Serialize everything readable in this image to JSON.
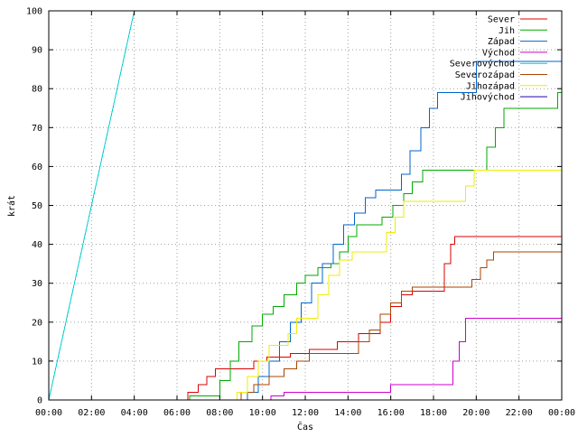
{
  "chart_data": {
    "type": "line",
    "title": "",
    "xlabel": "Čas",
    "ylabel": "krát",
    "x_ticks": [
      "00:00",
      "02:00",
      "04:00",
      "06:00",
      "08:00",
      "10:00",
      "12:00",
      "14:00",
      "16:00",
      "18:00",
      "20:00",
      "22:00",
      "00:00"
    ],
    "y_ticks": [
      "0",
      "10",
      "20",
      "30",
      "40",
      "50",
      "60",
      "70",
      "80",
      "90",
      "100"
    ],
    "xlim": [
      0,
      24
    ],
    "ylim": [
      0,
      100
    ],
    "grid": true,
    "legend_position": "top-right",
    "series": [
      {
        "name": "Sever",
        "color": "#dd0000",
        "shape": "steps",
        "points": [
          [
            0,
            0
          ],
          [
            6.5,
            0
          ],
          [
            6.5,
            2
          ],
          [
            7.0,
            2
          ],
          [
            7.0,
            4
          ],
          [
            7.4,
            4
          ],
          [
            7.4,
            6
          ],
          [
            7.8,
            6
          ],
          [
            7.8,
            8
          ],
          [
            9.6,
            8
          ],
          [
            9.6,
            10
          ],
          [
            10.2,
            10
          ],
          [
            10.2,
            11
          ],
          [
            11.3,
            11
          ],
          [
            11.3,
            12
          ],
          [
            12.2,
            12
          ],
          [
            12.2,
            13
          ],
          [
            13.5,
            13
          ],
          [
            13.5,
            15
          ],
          [
            14.5,
            15
          ],
          [
            14.5,
            17
          ],
          [
            15.5,
            17
          ],
          [
            15.5,
            20
          ],
          [
            16.0,
            20
          ],
          [
            16.0,
            24
          ],
          [
            16.5,
            24
          ],
          [
            16.5,
            27
          ],
          [
            17.0,
            27
          ],
          [
            17.0,
            28
          ],
          [
            18.5,
            28
          ],
          [
            18.5,
            35
          ],
          [
            18.8,
            35
          ],
          [
            18.8,
            40
          ],
          [
            19.0,
            40
          ],
          [
            19.0,
            42
          ],
          [
            24,
            42
          ]
        ]
      },
      {
        "name": "Jih",
        "color": "#00aa00",
        "shape": "steps",
        "points": [
          [
            0,
            0
          ],
          [
            6.6,
            0
          ],
          [
            6.6,
            1
          ],
          [
            8.0,
            1
          ],
          [
            8.0,
            5
          ],
          [
            8.5,
            5
          ],
          [
            8.5,
            10
          ],
          [
            8.9,
            10
          ],
          [
            8.9,
            15
          ],
          [
            9.5,
            15
          ],
          [
            9.5,
            19
          ],
          [
            10.0,
            19
          ],
          [
            10.0,
            22
          ],
          [
            10.5,
            22
          ],
          [
            10.5,
            24
          ],
          [
            11.0,
            24
          ],
          [
            11.0,
            27
          ],
          [
            11.6,
            27
          ],
          [
            11.6,
            30
          ],
          [
            12.0,
            30
          ],
          [
            12.0,
            32
          ],
          [
            12.6,
            32
          ],
          [
            12.6,
            34
          ],
          [
            13.2,
            34
          ],
          [
            13.2,
            35
          ],
          [
            13.6,
            35
          ],
          [
            13.6,
            38
          ],
          [
            14.0,
            38
          ],
          [
            14.0,
            42
          ],
          [
            14.4,
            42
          ],
          [
            14.4,
            45
          ],
          [
            15.6,
            45
          ],
          [
            15.6,
            47
          ],
          [
            16.1,
            47
          ],
          [
            16.1,
            50
          ],
          [
            16.6,
            50
          ],
          [
            16.6,
            53
          ],
          [
            17.0,
            53
          ],
          [
            17.0,
            56
          ],
          [
            17.5,
            56
          ],
          [
            17.5,
            59
          ],
          [
            20.5,
            59
          ],
          [
            20.5,
            65
          ],
          [
            20.9,
            65
          ],
          [
            20.9,
            70
          ],
          [
            21.3,
            70
          ],
          [
            21.3,
            75
          ],
          [
            23.8,
            75
          ],
          [
            23.8,
            79
          ],
          [
            24,
            79
          ]
        ]
      },
      {
        "name": "Západ",
        "color": "#0066cc",
        "shape": "steps",
        "points": [
          [
            0,
            0
          ],
          [
            9.3,
            0
          ],
          [
            9.3,
            2
          ],
          [
            9.8,
            2
          ],
          [
            9.8,
            6
          ],
          [
            10.3,
            6
          ],
          [
            10.3,
            10
          ],
          [
            10.8,
            10
          ],
          [
            10.8,
            15
          ],
          [
            11.3,
            15
          ],
          [
            11.3,
            20
          ],
          [
            11.8,
            20
          ],
          [
            11.8,
            25
          ],
          [
            12.3,
            25
          ],
          [
            12.3,
            30
          ],
          [
            12.8,
            30
          ],
          [
            12.8,
            35
          ],
          [
            13.3,
            35
          ],
          [
            13.3,
            40
          ],
          [
            13.8,
            40
          ],
          [
            13.8,
            45
          ],
          [
            14.3,
            45
          ],
          [
            14.3,
            48
          ],
          [
            14.8,
            48
          ],
          [
            14.8,
            52
          ],
          [
            15.3,
            52
          ],
          [
            15.3,
            54
          ],
          [
            16.5,
            54
          ],
          [
            16.5,
            58
          ],
          [
            16.9,
            58
          ],
          [
            16.9,
            64
          ],
          [
            17.4,
            64
          ],
          [
            17.4,
            70
          ],
          [
            17.8,
            70
          ],
          [
            17.8,
            75
          ],
          [
            18.2,
            75
          ],
          [
            18.2,
            79
          ],
          [
            20.0,
            79
          ],
          [
            20.0,
            87
          ],
          [
            24,
            87
          ]
        ]
      },
      {
        "name": "Východ",
        "color": "#cc00cc",
        "shape": "steps",
        "points": [
          [
            0,
            0
          ],
          [
            10.4,
            0
          ],
          [
            10.4,
            1
          ],
          [
            11.0,
            1
          ],
          [
            11.0,
            2
          ],
          [
            16.0,
            2
          ],
          [
            16.0,
            4
          ],
          [
            18.9,
            4
          ],
          [
            18.9,
            10
          ],
          [
            19.2,
            10
          ],
          [
            19.2,
            15
          ],
          [
            19.5,
            15
          ],
          [
            19.5,
            21
          ],
          [
            24,
            21
          ]
        ]
      },
      {
        "name": "Severovýchod",
        "color": "#00cccc",
        "shape": "line",
        "points": [
          [
            0,
            0
          ],
          [
            4.0,
            100
          ]
        ]
      },
      {
        "name": "Severozápad",
        "color": "#aa4400",
        "shape": "steps",
        "points": [
          [
            0,
            0
          ],
          [
            9.0,
            0
          ],
          [
            9.0,
            2
          ],
          [
            9.6,
            2
          ],
          [
            9.6,
            4
          ],
          [
            10.3,
            4
          ],
          [
            10.3,
            6
          ],
          [
            11.0,
            6
          ],
          [
            11.0,
            8
          ],
          [
            11.6,
            8
          ],
          [
            11.6,
            10
          ],
          [
            12.2,
            10
          ],
          [
            12.2,
            12
          ],
          [
            14.5,
            12
          ],
          [
            14.5,
            15
          ],
          [
            15.0,
            15
          ],
          [
            15.0,
            18
          ],
          [
            15.5,
            18
          ],
          [
            15.5,
            22
          ],
          [
            16.0,
            22
          ],
          [
            16.0,
            25
          ],
          [
            16.5,
            25
          ],
          [
            16.5,
            28
          ],
          [
            17.0,
            28
          ],
          [
            17.0,
            29
          ],
          [
            19.8,
            29
          ],
          [
            19.8,
            31
          ],
          [
            20.2,
            31
          ],
          [
            20.2,
            34
          ],
          [
            20.5,
            34
          ],
          [
            20.5,
            36
          ],
          [
            20.8,
            36
          ],
          [
            20.8,
            38
          ],
          [
            24,
            38
          ]
        ]
      },
      {
        "name": "Jihozápad",
        "color": "#eeee00",
        "shape": "steps",
        "points": [
          [
            0,
            0
          ],
          [
            8.8,
            0
          ],
          [
            8.8,
            2
          ],
          [
            9.3,
            2
          ],
          [
            9.3,
            6
          ],
          [
            9.8,
            6
          ],
          [
            9.8,
            10
          ],
          [
            10.3,
            10
          ],
          [
            10.3,
            14
          ],
          [
            11.2,
            14
          ],
          [
            11.2,
            17
          ],
          [
            11.6,
            17
          ],
          [
            11.6,
            21
          ],
          [
            12.6,
            21
          ],
          [
            12.6,
            27
          ],
          [
            13.1,
            27
          ],
          [
            13.1,
            32
          ],
          [
            13.6,
            32
          ],
          [
            13.6,
            36
          ],
          [
            14.2,
            36
          ],
          [
            14.2,
            38
          ],
          [
            15.8,
            38
          ],
          [
            15.8,
            43
          ],
          [
            16.2,
            43
          ],
          [
            16.2,
            47
          ],
          [
            16.6,
            47
          ],
          [
            16.6,
            51
          ],
          [
            19.5,
            51
          ],
          [
            19.5,
            55
          ],
          [
            19.9,
            55
          ],
          [
            19.9,
            59
          ],
          [
            24,
            59
          ]
        ]
      },
      {
        "name": "Jihovýchod",
        "color": "#2200aa",
        "shape": "steps",
        "points": [
          [
            0,
            0
          ],
          [
            24,
            0
          ]
        ]
      }
    ]
  }
}
